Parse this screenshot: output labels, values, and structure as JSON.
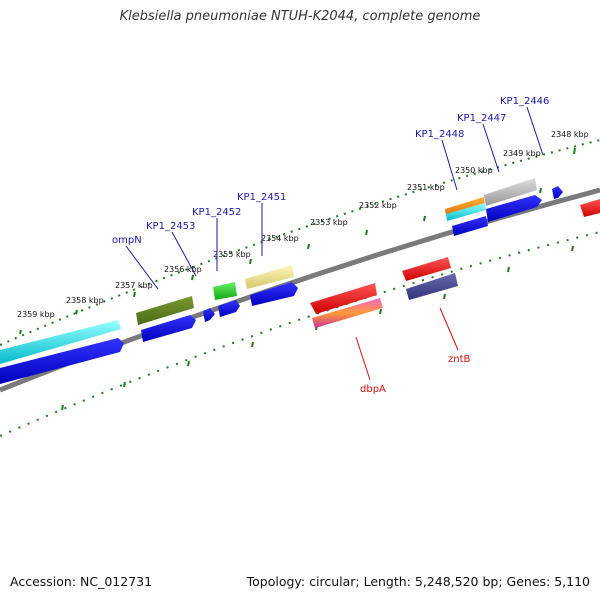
{
  "title": "Klebsiella pneumoniae NTUH-K2044, complete genome",
  "footer": {
    "accession": "Accession: NC_012731",
    "summary": "Topology: circular; Length: 5,248,520 bp; Genes: 5,110"
  },
  "ruler": {
    "unit": "kbp",
    "tick_labels": [
      "2348 kbp",
      "2349 kbp",
      "2350 kbp",
      "2351 kbp",
      "2352 kbp",
      "2353 kbp",
      "2354 kbp",
      "2355 kbp",
      "2356 kbp",
      "2357 kbp",
      "2358 kbp",
      "2359 kbp"
    ]
  },
  "genes_forward_labels": [
    "KP1_2446",
    "KP1_2447",
    "KP1_2448",
    "KP1_2451",
    "KP1_2452",
    "KP1_2453",
    "ompN"
  ],
  "genes_reverse_labels": [
    "zntB",
    "dbpA"
  ],
  "colors": {
    "backbone": "#808080",
    "ruler": "#1f7a1f",
    "forward_label": "#1a1aa8",
    "reverse_label": "#cc1111"
  }
}
